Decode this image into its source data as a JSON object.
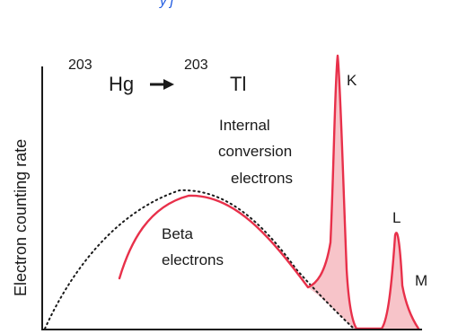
{
  "top_fragment": "y j",
  "reaction": {
    "parent_mass": "203",
    "parent_symbol": "Hg",
    "arrow": "→",
    "daughter_mass": "203",
    "daughter_symbol": "Tl"
  },
  "y_axis_label": "Electron counting rate",
  "labels": {
    "internal_conversion": [
      "Internal",
      "conversion",
      "electrons"
    ],
    "beta": [
      "Beta",
      "electrons"
    ],
    "peak_k": "K",
    "peak_l": "L",
    "peak_m": "M"
  },
  "colors": {
    "spectrum": "#e8304a",
    "fill": "#f7c4c9",
    "dotted": "#1a1a1a",
    "axis": "#1a1a1a",
    "top_fragment": "#1a56e0"
  }
}
